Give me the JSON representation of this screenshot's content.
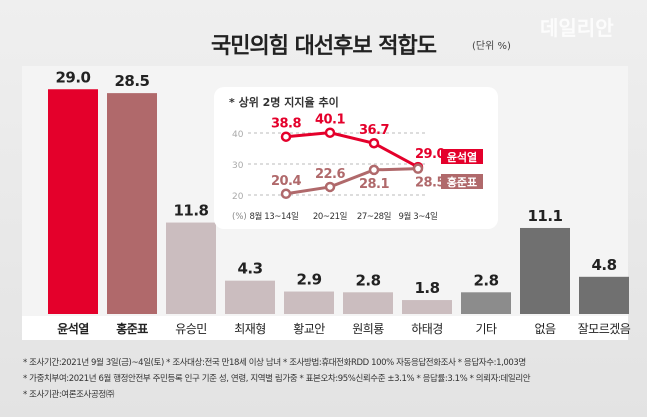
{
  "title": "국민의힘 대선후보 적합도",
  "unit": "(단위 %)",
  "watermark": "데일리안",
  "chart_data": [
    {
      "type": "bar",
      "categories": [
        "윤석열",
        "홍준표",
        "유승민",
        "최재형",
        "황교안",
        "원희룡",
        "하태경",
        "기타",
        "없음",
        "잘모르겠음"
      ],
      "values": [
        29.0,
        28.5,
        11.8,
        4.3,
        2.9,
        2.8,
        1.8,
        2.8,
        11.1,
        4.8
      ],
      "colors": [
        "#e4002b",
        "#b0696b",
        "#cbbdbf",
        "#cbbdbf",
        "#cbbdbf",
        "#cbbdbf",
        "#cbbdbf",
        "#8c8c8c",
        "#707070",
        "#707070"
      ],
      "ylim": [
        0,
        30
      ]
    },
    {
      "type": "line",
      "title": "* 상위 2명 지지율 추이",
      "x": [
        "8월 13~14일",
        "20~21일",
        "27~28일",
        "9월 3~4일"
      ],
      "yticks": [
        40,
        30,
        20
      ],
      "ylabel": "(%)",
      "ylim": [
        16,
        45
      ],
      "series": [
        {
          "name": "윤석열",
          "values": [
            38.8,
            40.1,
            36.7,
            29.0
          ],
          "color": "#e4002b"
        },
        {
          "name": "홍준표",
          "values": [
            20.4,
            22.6,
            28.1,
            28.5
          ],
          "color": "#b0696b"
        }
      ]
    }
  ],
  "notes": [
    "* 조사기간:2021년 9월 3일(금)~4일(토)  * 조사대상:전국 만18세 이상 남녀  * 조사방법:휴대전화RDD 100% 자동응답전화조사  * 응답자수:1,003명",
    "* 가중치부여:2021년 6월 행정안전부 주민등록 인구 기준 성, 연령, 지역별 림가중  * 표본오차:95%신뢰수준 ±3.1%  * 응답률:3.1%  * 의뢰자:데일리안",
    "* 조사기관:여론조사공정㈜"
  ]
}
